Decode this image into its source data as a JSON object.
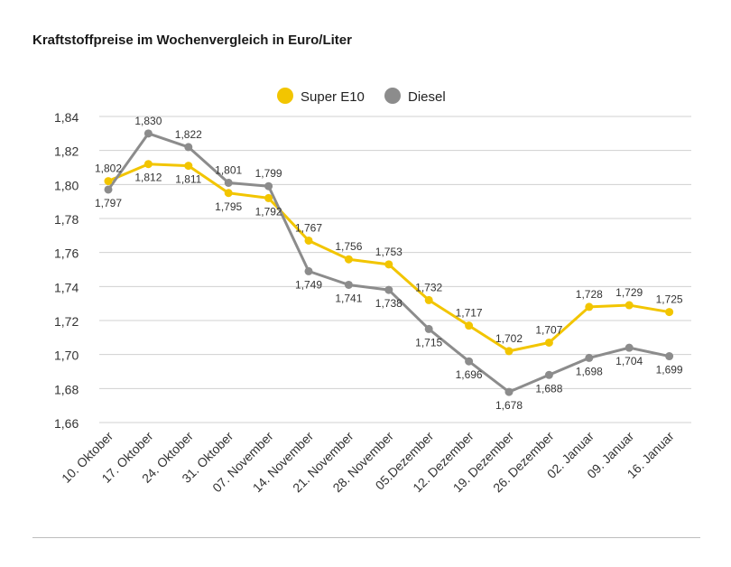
{
  "chart_data": {
    "type": "line",
    "title": "Kraftstoffpreise im Wochenvergleich in Euro/Liter",
    "xlabel": "",
    "ylabel": "",
    "categories": [
      "10. Oktober",
      "17. Oktober",
      "24. Oktober",
      "31. Oktober",
      "07. November",
      "14. November",
      "21. November",
      "28. November",
      "05.Dezember",
      "12. Dezember",
      "19. Dezember",
      "26. Dezember",
      "02. Januar",
      "09. Januar",
      "16. Januar"
    ],
    "ylim": [
      1.66,
      1.84
    ],
    "yticks": [
      "1,66",
      "1,68",
      "1,70",
      "1,72",
      "1,74",
      "1,76",
      "1,78",
      "1,80",
      "1,82",
      "1,84"
    ],
    "grid": true,
    "legend_position": "top-center",
    "series": [
      {
        "name": "Super E10",
        "color": "#f2c500",
        "values": [
          1.802,
          1.812,
          1.811,
          1.795,
          1.792,
          1.767,
          1.756,
          1.753,
          1.732,
          1.717,
          1.702,
          1.707,
          1.728,
          1.729,
          1.725
        ],
        "labels": [
          "1,802",
          "1,812",
          "1,811",
          "1,795",
          "1,792",
          "1,767",
          "1,756",
          "1,753",
          "1,732",
          "1,717",
          "1,702",
          "1,707",
          "1,728",
          "1,729",
          "1,725"
        ]
      },
      {
        "name": "Diesel",
        "color": "#8c8c8c",
        "values": [
          1.797,
          1.83,
          1.822,
          1.801,
          1.799,
          1.749,
          1.741,
          1.738,
          1.715,
          1.696,
          1.678,
          1.688,
          1.698,
          1.704,
          1.699
        ],
        "labels": [
          "1,797",
          "1,830",
          "1,822",
          "1,801",
          "1,799",
          "1,749",
          "1,741",
          "1,738",
          "1,715",
          "1,696",
          "1,678",
          "1,688",
          "1,698",
          "1,704",
          "1,699"
        ]
      }
    ]
  }
}
